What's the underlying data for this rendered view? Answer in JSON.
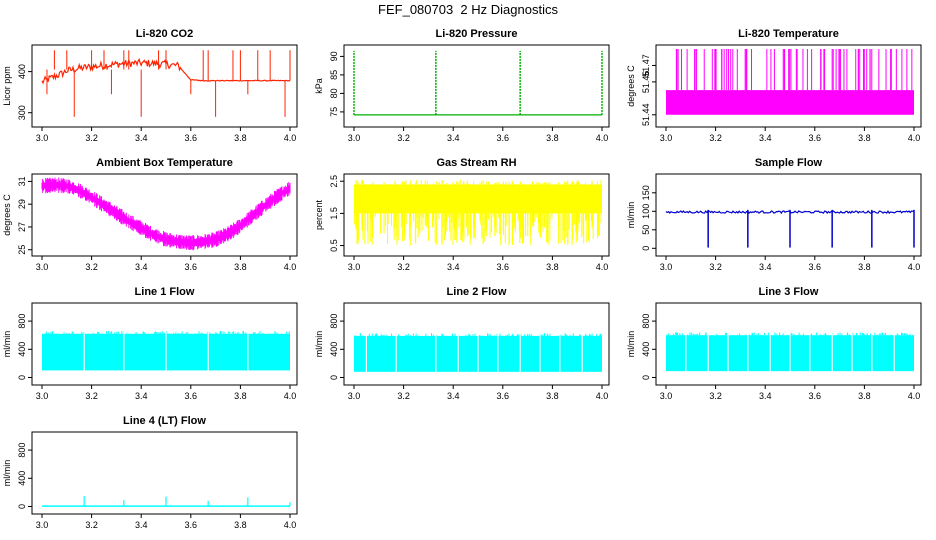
{
  "page": {
    "title": "FEF_080703  2 Hz Diagnostics"
  },
  "colors": {
    "co2": "#ff2200",
    "pressure": "#00b000",
    "temperature": "#ff00ff",
    "box_temp": "#ff00ff",
    "rh": "#ffff00",
    "sample_flow": "#0000cc",
    "line_flow": "#00ffff",
    "axis": "#000000"
  },
  "chart_data": [
    {
      "id": "co2",
      "type": "line",
      "title": "Li-820 CO2",
      "ylabel": "Licor ppm",
      "xlim": [
        3.0,
        4.0
      ],
      "ylim": [
        275,
        455
      ],
      "xticks": [
        "3.0",
        "3.2",
        "3.4",
        "3.6",
        "3.8",
        "4.0"
      ],
      "yticks": [
        "300",
        "400"
      ],
      "color_key": "co2",
      "series": {
        "name": "CO2",
        "x": [
          3.0,
          3.02,
          3.05,
          3.08,
          3.1,
          3.15,
          3.2,
          3.25,
          3.3,
          3.35,
          3.4,
          3.45,
          3.5,
          3.55,
          3.6,
          3.65,
          3.7,
          3.75,
          3.8,
          3.9,
          4.0
        ],
        "y": [
          375,
          380,
          388,
          395,
          402,
          408,
          412,
          415,
          418,
          420,
          421,
          420,
          418,
          414,
          380,
          378,
          378,
          378,
          378,
          378,
          378
        ]
      },
      "spikes": [
        3.02,
        3.05,
        3.1,
        3.13,
        3.2,
        3.25,
        3.28,
        3.33,
        3.35,
        3.4,
        3.47,
        3.5,
        3.6,
        3.65,
        3.67,
        3.7,
        3.77,
        3.8,
        3.83,
        3.87,
        3.92,
        3.98,
        4.0
      ]
    },
    {
      "id": "pressure",
      "type": "line",
      "title": "Li-820 Pressure",
      "ylabel": "kPa",
      "xlim": [
        3.0,
        4.0
      ],
      "ylim": [
        72,
        92
      ],
      "xticks": [
        "3.0",
        "3.2",
        "3.4",
        "3.6",
        "3.8",
        "4.0"
      ],
      "yticks": [
        "75",
        "80",
        "85",
        "90"
      ],
      "color_key": "pressure",
      "series": {
        "name": "Pressure",
        "x": [
          3.0,
          4.0
        ],
        "y": [
          74.2,
          74.2
        ]
      },
      "spikes": [
        3.0,
        3.33,
        3.67,
        4.0
      ]
    },
    {
      "id": "temperature",
      "type": "line",
      "title": "Li-820 Temperature",
      "ylabel": "degrees C",
      "xlim": [
        3.0,
        4.0
      ],
      "ylim": [
        51.435,
        51.48
      ],
      "xticks": [
        "3.0",
        "3.2",
        "3.4",
        "3.6",
        "3.8",
        "4.0"
      ],
      "yticks": [
        "51.44",
        "51.46",
        "51.47"
      ],
      "color_key": "temperature",
      "series": {
        "name": "Temperature",
        "band": [
          51.44,
          51.455
        ]
      },
      "spikes_top": 51.48
    },
    {
      "id": "box_temp",
      "type": "line",
      "title": "Ambient Box Temperature",
      "ylabel": "degrees C",
      "xlim": [
        3.0,
        4.0
      ],
      "ylim": [
        24.8,
        31.3
      ],
      "xticks": [
        "3.0",
        "3.2",
        "3.4",
        "3.6",
        "3.8",
        "4.0"
      ],
      "yticks": [
        "25",
        "27",
        "29",
        "31"
      ],
      "color_key": "box_temp",
      "series": {
        "name": "Box Temp",
        "x": [
          3.0,
          3.05,
          3.1,
          3.15,
          3.2,
          3.25,
          3.3,
          3.35,
          3.4,
          3.45,
          3.5,
          3.55,
          3.6,
          3.65,
          3.7,
          3.75,
          3.8,
          3.85,
          3.9,
          3.95,
          4.0
        ],
        "y": [
          30.6,
          30.7,
          30.6,
          30.2,
          29.6,
          28.9,
          28.2,
          27.5,
          26.9,
          26.3,
          25.9,
          25.7,
          25.6,
          25.7,
          25.9,
          26.4,
          27.1,
          28.0,
          28.9,
          29.7,
          30.4
        ]
      },
      "noise": 0.45
    },
    {
      "id": "rh",
      "type": "area",
      "title": "Gas Stream RH",
      "ylabel": "percent",
      "xlim": [
        3.0,
        4.0
      ],
      "ylim": [
        0.3,
        2.6
      ],
      "xticks": [
        "3.0",
        "3.2",
        "3.4",
        "3.6",
        "3.8",
        "4.0"
      ],
      "yticks": [
        "0.5",
        "1.5",
        "2.5"
      ],
      "color_key": "rh",
      "series": {
        "name": "RH",
        "band": [
          1.5,
          2.4
        ],
        "low": 0.5
      }
    },
    {
      "id": "sample_flow",
      "type": "line",
      "title": "Sample Flow",
      "ylabel": "ml/min",
      "xlim": [
        3.0,
        4.0
      ],
      "ylim": [
        -10,
        190
      ],
      "xticks": [
        "3.0",
        "3.2",
        "3.4",
        "3.6",
        "3.8",
        "4.0"
      ],
      "yticks": [
        "0",
        "50",
        "100",
        "150"
      ],
      "color_key": "sample_flow",
      "series": {
        "name": "Sample Flow",
        "x": [
          3.0,
          4.0
        ],
        "y": [
          98,
          98
        ]
      },
      "dips": [
        3.17,
        3.33,
        3.5,
        3.67,
        3.83,
        4.0
      ]
    },
    {
      "id": "line1",
      "type": "area",
      "title": "Line 1 Flow",
      "ylabel": "ml/min",
      "xlim": [
        3.0,
        4.0
      ],
      "ylim": [
        -50,
        1000
      ],
      "xticks": [
        "3.0",
        "3.2",
        "3.4",
        "3.6",
        "3.8",
        "4.0"
      ],
      "yticks": [
        "0",
        "400",
        "800"
      ],
      "color_key": "line_flow",
      "series": {
        "name": "Line 1",
        "band": [
          100,
          620
        ]
      },
      "gaps": [
        3.17,
        3.33,
        3.5,
        3.67,
        3.83
      ]
    },
    {
      "id": "line2",
      "type": "area",
      "title": "Line 2 Flow",
      "ylabel": "ml/min",
      "xlim": [
        3.0,
        4.0
      ],
      "ylim": [
        -50,
        1000
      ],
      "xticks": [
        "3.0",
        "3.2",
        "3.4",
        "3.6",
        "3.8",
        "4.0"
      ],
      "yticks": [
        "0",
        "400",
        "800"
      ],
      "color_key": "line_flow",
      "series": {
        "name": "Line 2",
        "band": [
          80,
          590
        ]
      },
      "gaps": [
        3.05,
        3.17,
        3.33,
        3.42,
        3.5,
        3.58,
        3.67,
        3.75,
        3.83,
        3.92
      ]
    },
    {
      "id": "line3",
      "type": "area",
      "title": "Line 3 Flow",
      "ylabel": "ml/min",
      "xlim": [
        3.0,
        4.0
      ],
      "ylim": [
        -50,
        1000
      ],
      "xticks": [
        "3.0",
        "3.2",
        "3.4",
        "3.6",
        "3.8",
        "4.0"
      ],
      "yticks": [
        "0",
        "400",
        "800"
      ],
      "color_key": "line_flow",
      "series": {
        "name": "Line 3",
        "band": [
          90,
          600
        ]
      },
      "gaps": [
        3.08,
        3.17,
        3.25,
        3.33,
        3.42,
        3.5,
        3.58,
        3.67,
        3.75,
        3.83,
        3.92
      ]
    },
    {
      "id": "line4",
      "type": "line",
      "title": "Line 4 (LT) Flow",
      "ylabel": "ml/min",
      "xlim": [
        3.0,
        4.0
      ],
      "ylim": [
        -50,
        1000
      ],
      "xticks": [
        "3.0",
        "3.2",
        "3.4",
        "3.6",
        "3.8",
        "4.0"
      ],
      "yticks": [
        "0",
        "400",
        "800"
      ],
      "color_key": "line_flow",
      "series": {
        "name": "Line 4",
        "x": [
          3.0,
          4.0
        ],
        "y": [
          5,
          5
        ]
      },
      "spikes": [
        3.17,
        3.33,
        3.5,
        3.67,
        3.83,
        4.0
      ],
      "spike_heights": [
        150,
        90,
        140,
        80,
        130,
        60
      ]
    }
  ]
}
